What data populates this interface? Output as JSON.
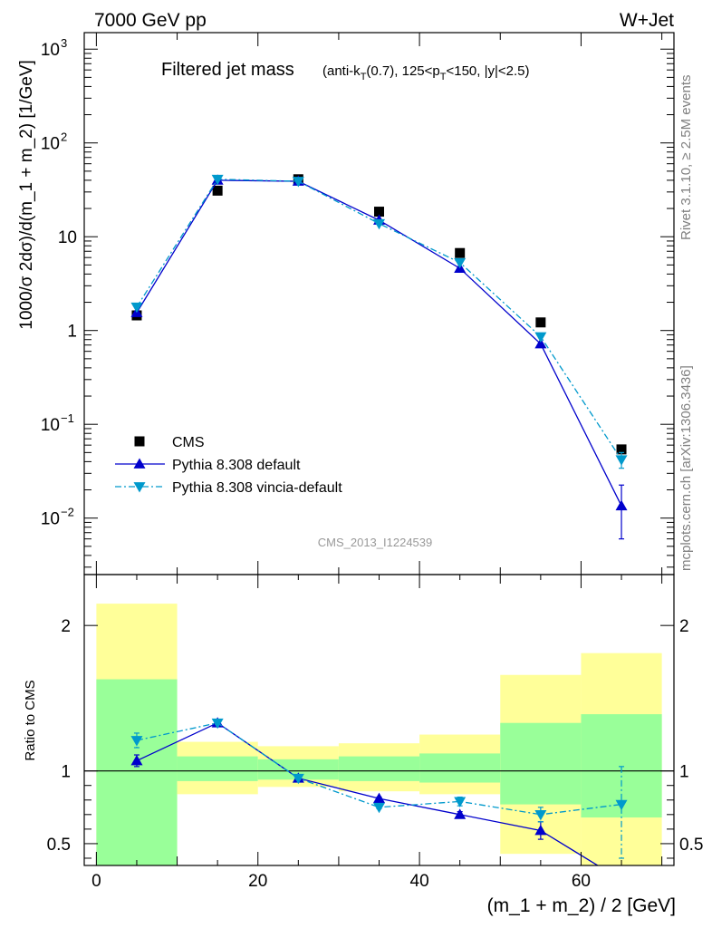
{
  "header": {
    "left": "7000 GeV pp",
    "right": "W+Jet"
  },
  "side": {
    "rivet": "Rivet 3.1.10, ≥ 2.5M events",
    "mcplots": "mcplots.cern.ch [arXiv:1306.3436]"
  },
  "chart_data": [
    {
      "type": "scatter",
      "title": "Filtered jet mass",
      "subtitle_parts": [
        "(anti-k",
        "T",
        "(0.7), 125<p",
        "T",
        "<150, |y|<2.5)"
      ],
      "watermark": "CMS_2013_I1224539",
      "ylabel": "1000/σ 2dσ)/d(m_1 + m_2) [1/GeV]",
      "xlabel": "(m_1 + m_2) / 2 [GeV]",
      "yscale": "log",
      "xlim": [
        -1.5,
        71.5
      ],
      "ylim": [
        0.0025,
        1500
      ],
      "y_ticks": [
        {
          "v": 1000,
          "base": "10",
          "exp": "3"
        },
        {
          "v": 100,
          "base": "10",
          "exp": "2"
        },
        {
          "v": 10,
          "base": "10",
          "exp": ""
        },
        {
          "v": 1,
          "base": "1",
          "exp": ""
        },
        {
          "v": 0.1,
          "base": "10",
          "exp": "−1"
        },
        {
          "v": 0.01,
          "base": "10",
          "exp": "−2"
        }
      ],
      "legend": {
        "position": "bottom-left",
        "entries": [
          "CMS",
          "Pythia 8.308 default",
          "Pythia 8.308 vincia-default"
        ]
      },
      "x": [
        5,
        15,
        25,
        35,
        45,
        55,
        65
      ],
      "series": [
        {
          "name": "CMS",
          "color": "#000000",
          "marker": "square",
          "values": [
            1.45,
            31,
            41,
            18.5,
            6.7,
            1.22,
            0.054
          ]
        },
        {
          "name": "Pythia 8.308 default",
          "color": "#0000cc",
          "marker": "triangle-up",
          "line": "solid",
          "values": [
            1.55,
            40,
            39,
            15,
            4.6,
            0.72,
            0.0135
          ],
          "err_lo": [
            0,
            0,
            0,
            0,
            0,
            0,
            0.0075
          ],
          "err_hi": [
            0,
            0,
            0,
            0,
            0,
            0,
            0.009
          ]
        },
        {
          "name": "Pythia 8.308 vincia-default",
          "color": "#0099cc",
          "marker": "triangle-down",
          "line": "dashdot",
          "values": [
            1.78,
            41,
            39,
            13.8,
            5.3,
            0.86,
            0.042
          ],
          "err_lo": [
            0,
            0,
            0,
            0,
            0,
            0,
            0.008
          ],
          "err_hi": [
            0,
            0,
            0,
            0,
            0,
            0,
            0.008
          ]
        }
      ]
    },
    {
      "type": "scatter",
      "ylabel": "Ratio to CMS",
      "xlabel": "(m_1 + m_2) / 2 [GeV]",
      "xlim": [
        -1.5,
        71.5
      ],
      "ylim": [
        0.35,
        2.35
      ],
      "x_ticks": [
        0,
        20,
        40,
        60
      ],
      "y_ticks": [
        0.5,
        1,
        2
      ],
      "bin_edges": [
        0,
        10,
        20,
        30,
        40,
        50,
        60,
        70
      ],
      "band_yellow": {
        "lo": [
          0.35,
          0.84,
          0.89,
          0.86,
          0.84,
          0.43,
          0.35
        ],
        "hi": [
          2.15,
          1.2,
          1.17,
          1.19,
          1.25,
          1.66,
          1.81
        ]
      },
      "band_green": {
        "lo": [
          0.35,
          0.93,
          0.94,
          0.93,
          0.92,
          0.77,
          0.68
        ],
        "hi": [
          1.63,
          1.1,
          1.08,
          1.1,
          1.12,
          1.33,
          1.39
        ]
      },
      "x": [
        5,
        15,
        25,
        35,
        45,
        55,
        65
      ],
      "series": [
        {
          "name": "Pythia 8.308 default",
          "color": "#0000cc",
          "marker": "triangle-up",
          "line": "solid",
          "values": [
            1.07,
            1.33,
            0.95,
            0.81,
            0.7,
            0.59,
            0.25
          ],
          "err_lo": [
            0.04,
            0.01,
            0.01,
            0.01,
            0.02,
            0.06,
            0
          ],
          "err_hi": [
            0.04,
            0.01,
            0.01,
            0.01,
            0.02,
            0.06,
            0
          ]
        },
        {
          "name": "Pythia 8.308 vincia-default",
          "color": "#0099cc",
          "marker": "triangle-down",
          "line": "dashdot",
          "values": [
            1.21,
            1.33,
            0.95,
            0.75,
            0.79,
            0.7,
            0.77
          ],
          "err_lo": [
            0.05,
            0.01,
            0.01,
            0.01,
            0.03,
            0.05,
            0.37
          ],
          "err_hi": [
            0.05,
            0.01,
            0.01,
            0.01,
            0.03,
            0.05,
            0.26
          ]
        }
      ]
    }
  ]
}
